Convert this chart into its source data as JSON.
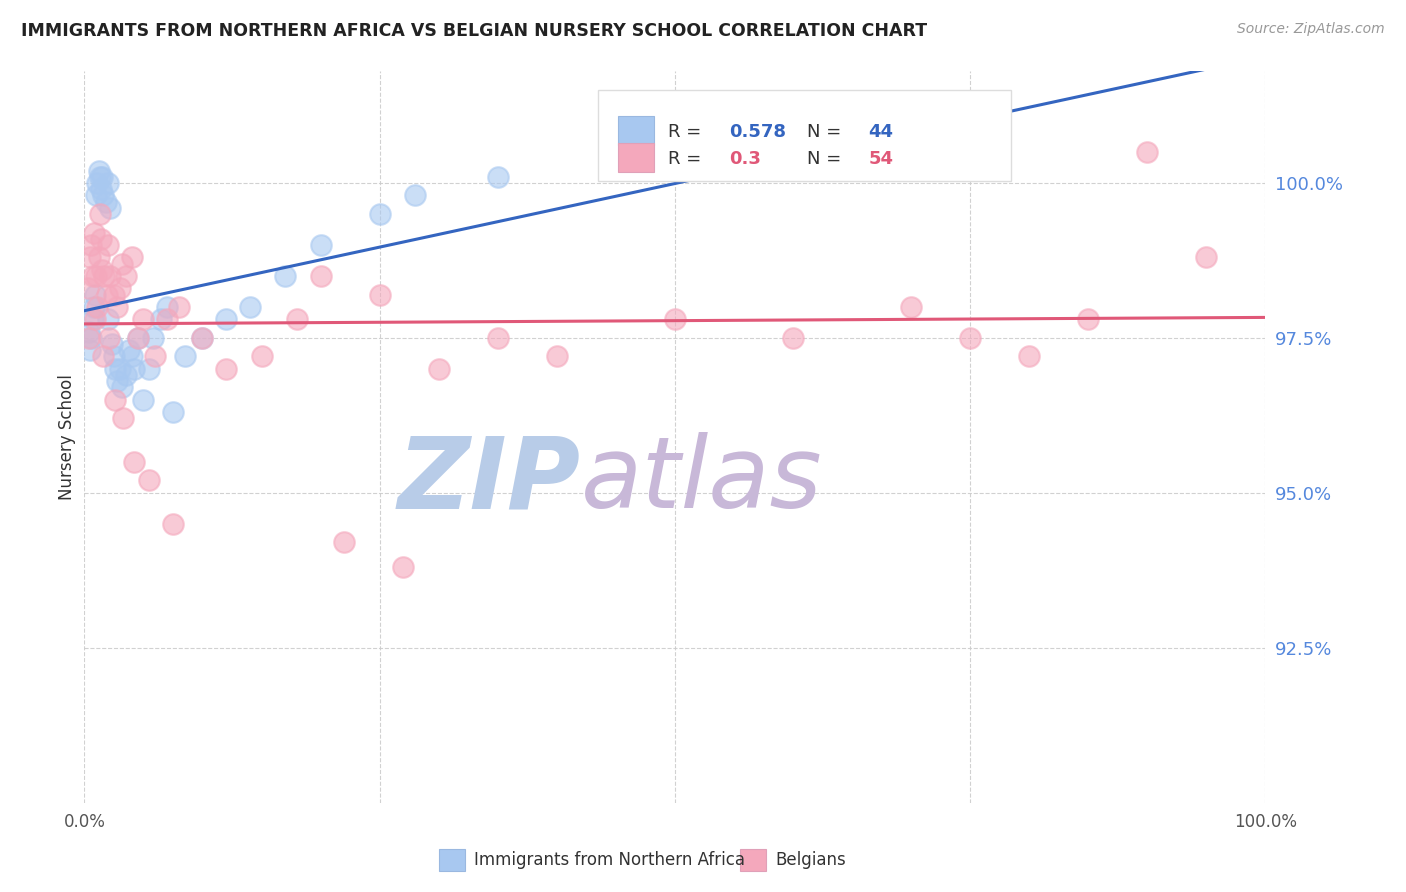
{
  "title": "IMMIGRANTS FROM NORTHERN AFRICA VS BELGIAN NURSERY SCHOOL CORRELATION CHART",
  "source": "Source: ZipAtlas.com",
  "ylabel": "Nursery School",
  "xlim": [
    0.0,
    100.0
  ],
  "ylim": [
    90.0,
    101.8
  ],
  "yticks": [
    92.5,
    95.0,
    97.5,
    100.0
  ],
  "ytick_labels": [
    "92.5%",
    "95.0%",
    "97.5%",
    "100.0%"
  ],
  "blue_R": 0.578,
  "blue_N": 44,
  "pink_R": 0.3,
  "pink_N": 54,
  "blue_color": "#a8c8f0",
  "pink_color": "#f4a8bc",
  "blue_line_color": "#3465c0",
  "pink_line_color": "#e05878",
  "background_color": "#ffffff",
  "watermark_text1": "ZIP",
  "watermark_text2": "atlas",
  "watermark_color1": "#b8cce8",
  "watermark_color2": "#c8b8d8",
  "blue_x": [
    0.4,
    0.5,
    0.6,
    0.7,
    0.8,
    0.9,
    1.0,
    1.1,
    1.2,
    1.3,
    1.4,
    1.5,
    1.6,
    1.8,
    2.0,
    2.2,
    2.5,
    2.8,
    3.0,
    3.5,
    4.0,
    4.5,
    5.0,
    5.5,
    6.5,
    7.5,
    2.0,
    2.3,
    2.6,
    3.2,
    3.8,
    4.2,
    5.8,
    7.0,
    8.5,
    10.0,
    12.0,
    14.0,
    17.0,
    20.0,
    25.0,
    28.0,
    35.0,
    55.0
  ],
  "blue_y": [
    97.6,
    97.3,
    97.5,
    97.8,
    98.0,
    98.2,
    99.8,
    100.0,
    100.2,
    100.1,
    99.9,
    100.1,
    99.8,
    99.7,
    100.0,
    99.6,
    97.2,
    96.8,
    97.0,
    96.9,
    97.2,
    97.5,
    96.5,
    97.0,
    97.8,
    96.3,
    97.8,
    97.4,
    97.0,
    96.7,
    97.3,
    97.0,
    97.5,
    98.0,
    97.2,
    97.5,
    97.8,
    98.0,
    98.5,
    99.0,
    99.5,
    99.8,
    100.1,
    100.5
  ],
  "pink_x": [
    0.3,
    0.5,
    0.6,
    0.8,
    1.0,
    1.1,
    1.2,
    1.4,
    1.5,
    1.7,
    1.9,
    2.0,
    2.2,
    2.5,
    2.8,
    3.0,
    3.2,
    3.5,
    4.0,
    4.5,
    5.0,
    6.0,
    7.0,
    8.0,
    10.0,
    12.0,
    15.0,
    18.0,
    20.0,
    25.0,
    30.0,
    35.0,
    40.0,
    50.0,
    60.0,
    70.0,
    75.0,
    80.0,
    85.0,
    90.0,
    95.0,
    0.4,
    0.7,
    0.9,
    1.3,
    1.6,
    2.1,
    2.6,
    3.3,
    4.2,
    5.5,
    7.5,
    22.0,
    27.0
  ],
  "pink_y": [
    98.3,
    98.8,
    99.0,
    99.2,
    98.5,
    98.0,
    98.8,
    99.1,
    98.6,
    98.5,
    98.2,
    99.0,
    98.5,
    98.2,
    98.0,
    98.3,
    98.7,
    98.5,
    98.8,
    97.5,
    97.8,
    97.2,
    97.8,
    98.0,
    97.5,
    97.0,
    97.2,
    97.8,
    98.5,
    98.2,
    97.0,
    97.5,
    97.2,
    97.8,
    97.5,
    98.0,
    97.5,
    97.2,
    97.8,
    100.5,
    98.8,
    97.5,
    98.5,
    97.8,
    99.5,
    97.2,
    97.5,
    96.5,
    96.2,
    95.5,
    95.2,
    94.5,
    94.2,
    93.8
  ]
}
